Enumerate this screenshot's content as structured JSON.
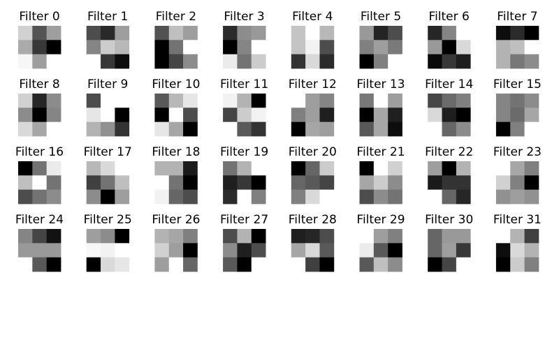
{
  "chart_data": {
    "type": "heatmap",
    "colormap": "gray",
    "grid": false,
    "panel_rows": 4,
    "panel_cols": 8,
    "panels": [
      {
        "title": "Filter 0",
        "values": [
          [
            0.82,
            0.33,
            0.62
          ],
          [
            0.67,
            0.22,
            0.0
          ],
          [
            0.97,
            0.62,
            1.0
          ]
        ]
      },
      {
        "title": "Filter 1",
        "values": [
          [
            0.3,
            0.16,
            0.62
          ],
          [
            0.52,
            0.8,
            0.72
          ],
          [
            1.0,
            0.22,
            0.05
          ]
        ]
      },
      {
        "title": "Filter 2",
        "values": [
          [
            0.32,
            0.75,
            0.62
          ],
          [
            0.0,
            0.45,
            1.0
          ],
          [
            0.0,
            0.27,
            0.55
          ]
        ]
      },
      {
        "title": "Filter 3",
        "values": [
          [
            0.17,
            0.55,
            0.6
          ],
          [
            0.0,
            0.52,
            1.0
          ],
          [
            0.92,
            0.45,
            0.8
          ]
        ]
      },
      {
        "title": "Filter 4",
        "values": [
          [
            0.77,
            1.0,
            0.72
          ],
          [
            0.77,
            0.95,
            0.3
          ],
          [
            0.2,
            0.85,
            0.17
          ]
        ]
      },
      {
        "title": "Filter 5",
        "values": [
          [
            0.6,
            0.14,
            0.3
          ],
          [
            0.5,
            0.62,
            0.48
          ],
          [
            0.0,
            0.5,
            1.0
          ]
        ]
      },
      {
        "title": "Filter 6",
        "values": [
          [
            0.15,
            0.52,
            1.0
          ],
          [
            0.6,
            0.0,
            0.85
          ],
          [
            0.04,
            0.22,
            0.12
          ]
        ]
      },
      {
        "title": "Filter 7",
        "values": [
          [
            0.05,
            0.17,
            0.0
          ],
          [
            0.7,
            0.75,
            1.0
          ],
          [
            0.7,
            0.47,
            0.55
          ]
        ]
      },
      {
        "title": "Filter 8",
        "values": [
          [
            0.82,
            0.15,
            0.55
          ],
          [
            0.55,
            0.0,
            0.52
          ],
          [
            0.85,
            0.65,
            1.0
          ]
        ]
      },
      {
        "title": "Filter 9",
        "values": [
          [
            0.3,
            1.0,
            1.0
          ],
          [
            0.9,
            1.0,
            0.0
          ],
          [
            0.7,
            0.57,
            0.2
          ]
        ]
      },
      {
        "title": "Filter 10",
        "values": [
          [
            0.35,
            0.72,
            0.9
          ],
          [
            0.0,
            1.0,
            0.3
          ],
          [
            0.9,
            0.65,
            0.0
          ]
        ]
      },
      {
        "title": "Filter 11",
        "values": [
          [
            0.95,
            0.7,
            0.0
          ],
          [
            0.27,
            0.8,
            0.95
          ],
          [
            1.0,
            0.35,
            0.2
          ]
        ]
      },
      {
        "title": "Filter 12",
        "values": [
          [
            1.0,
            0.62,
            0.52
          ],
          [
            0.5,
            0.62,
            0.12
          ],
          [
            0.0,
            0.65,
            0.62
          ]
        ]
      },
      {
        "title": "Filter 13",
        "values": [
          [
            0.47,
            1.0,
            0.62
          ],
          [
            0.0,
            0.65,
            0.12
          ],
          [
            0.35,
            0.65,
            0.05
          ]
        ]
      },
      {
        "title": "Filter 14",
        "values": [
          [
            0.28,
            0.42,
            0.5
          ],
          [
            0.85,
            0.12,
            0.0
          ],
          [
            1.0,
            0.4,
            0.55
          ]
        ]
      },
      {
        "title": "Filter 15",
        "values": [
          [
            0.52,
            0.45,
            0.55
          ],
          [
            0.52,
            0.42,
            0.65
          ],
          [
            0.0,
            0.5,
            1.0
          ]
        ]
      },
      {
        "title": "Filter 16",
        "values": [
          [
            0.0,
            0.45,
            0.92
          ],
          [
            0.75,
            1.0,
            0.45
          ],
          [
            0.3,
            0.45,
            0.55
          ]
        ]
      },
      {
        "title": "Filter 17",
        "values": [
          [
            0.72,
            0.85,
            1.0
          ],
          [
            0.25,
            0.45,
            0.75
          ],
          [
            0.55,
            0.0,
            0.62
          ]
        ]
      },
      {
        "title": "Filter 18",
        "values": [
          [
            0.7,
            0.7,
            0.1
          ],
          [
            1.0,
            0.45,
            0.0
          ],
          [
            0.95,
            0.4,
            0.3
          ]
        ]
      },
      {
        "title": "Filter 19",
        "values": [
          [
            0.45,
            0.7,
            1.0
          ],
          [
            0.12,
            0.22,
            0.0
          ],
          [
            0.17,
            1.0,
            0.5
          ]
        ]
      },
      {
        "title": "Filter 20",
        "values": [
          [
            0.0,
            0.4,
            0.8
          ],
          [
            0.4,
            0.35,
            0.27
          ],
          [
            0.5,
            0.85,
            1.0
          ]
        ]
      },
      {
        "title": "Filter 21",
        "values": [
          [
            0.0,
            1.0,
            0.82
          ],
          [
            0.65,
            0.8,
            0.55
          ],
          [
            0.3,
            0.55,
            0.45
          ]
        ]
      },
      {
        "title": "Filter 22",
        "values": [
          [
            0.62,
            0.0,
            0.7
          ],
          [
            0.1,
            0.2,
            0.2
          ],
          [
            1.0,
            0.4,
            0.15
          ]
        ]
      },
      {
        "title": "Filter 23",
        "values": [
          [
            1.0,
            0.65,
            0.5
          ],
          [
            0.82,
            0.5,
            0.0
          ],
          [
            0.57,
            0.62,
            0.57
          ]
        ]
      },
      {
        "title": "Filter 24",
        "values": [
          [
            0.52,
            0.27,
            0.07
          ],
          [
            0.6,
            0.6,
            0.6
          ],
          [
            1.0,
            0.35,
            0.0
          ]
        ]
      },
      {
        "title": "Filter 25",
        "values": [
          [
            0.62,
            0.55,
            0.0
          ],
          [
            0.97,
            0.95,
            1.0
          ],
          [
            0.0,
            0.85,
            0.9
          ]
        ]
      },
      {
        "title": "Filter 26",
        "values": [
          [
            0.7,
            0.65,
            0.5
          ],
          [
            0.82,
            0.62,
            0.0
          ],
          [
            0.62,
            1.0,
            0.4
          ]
        ]
      },
      {
        "title": "Filter 27",
        "values": [
          [
            0.3,
            0.7,
            0.0
          ],
          [
            0.55,
            0.12,
            0.3
          ],
          [
            0.35,
            0.0,
            1.0
          ]
        ]
      },
      {
        "title": "Filter 28",
        "values": [
          [
            0.12,
            0.15,
            0.3
          ],
          [
            0.65,
            0.85,
            0.35
          ],
          [
            1.0,
            0.25,
            0.0
          ]
        ]
      },
      {
        "title": "Filter 29",
        "values": [
          [
            1.0,
            0.62,
            0.5
          ],
          [
            0.92,
            0.35,
            0.0
          ],
          [
            0.35,
            0.75,
            0.55
          ]
        ]
      },
      {
        "title": "Filter 30",
        "values": [
          [
            0.4,
            0.6,
            0.6
          ],
          [
            0.4,
            0.62,
            0.22
          ],
          [
            0.0,
            0.27,
            1.0
          ]
        ]
      },
      {
        "title": "Filter 31",
        "values": [
          [
            1.0,
            0.7,
            0.25
          ],
          [
            0.05,
            0.85,
            0.7
          ],
          [
            0.0,
            0.8,
            0.5
          ]
        ]
      }
    ]
  }
}
